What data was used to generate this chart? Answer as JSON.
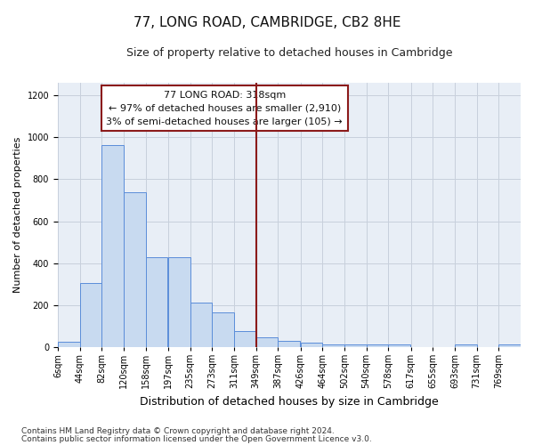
{
  "title": "77, LONG ROAD, CAMBRIDGE, CB2 8HE",
  "subtitle": "Size of property relative to detached houses in Cambridge",
  "xlabel": "Distribution of detached houses by size in Cambridge",
  "ylabel": "Number of detached properties",
  "footnote1": "Contains HM Land Registry data © Crown copyright and database right 2024.",
  "footnote2": "Contains public sector information licensed under the Open Government Licence v3.0.",
  "property_label": "77 LONG ROAD: 318sqm",
  "annotation_line1": "← 97% of detached houses are smaller (2,910)",
  "annotation_line2": "3% of semi-detached houses are larger (105) →",
  "property_size": 318,
  "bar_left_edges": [
    6,
    44,
    82,
    120,
    158,
    197,
    235,
    273,
    311,
    349,
    387,
    426,
    464,
    502,
    540,
    578,
    617,
    655,
    693,
    731,
    769
  ],
  "bar_widths": [
    38,
    38,
    38,
    38,
    38,
    38,
    38,
    38,
    38,
    38,
    38,
    38,
    38,
    38,
    38,
    38,
    38,
    38,
    38,
    38,
    38
  ],
  "bar_heights": [
    25,
    305,
    965,
    740,
    430,
    430,
    210,
    165,
    75,
    45,
    30,
    20,
    10,
    10,
    10,
    10,
    0,
    0,
    10,
    0,
    10
  ],
  "bar_color": "#c8daf0",
  "bar_edge_color": "#5b8dd9",
  "vline_x": 349,
  "vline_color": "#8b1a1a",
  "grid_color": "#c8d0dc",
  "background_color": "#e8eef6",
  "ylim": [
    0,
    1260
  ],
  "xlim": [
    6,
    807
  ],
  "yticks": [
    0,
    200,
    400,
    600,
    800,
    1000,
    1200
  ],
  "xtick_labels": [
    "6sqm",
    "44sqm",
    "82sqm",
    "120sqm",
    "158sqm",
    "197sqm",
    "235sqm",
    "273sqm",
    "311sqm",
    "349sqm",
    "387sqm",
    "426sqm",
    "464sqm",
    "502sqm",
    "540sqm",
    "578sqm",
    "617sqm",
    "655sqm",
    "693sqm",
    "731sqm",
    "769sqm"
  ],
  "xtick_positions": [
    6,
    44,
    82,
    120,
    158,
    197,
    235,
    273,
    311,
    349,
    387,
    426,
    464,
    502,
    540,
    578,
    617,
    655,
    693,
    731,
    769
  ],
  "annotation_box_color": "#8b1a1a",
  "title_fontsize": 11,
  "subtitle_fontsize": 9,
  "ylabel_fontsize": 8,
  "xlabel_fontsize": 9,
  "annotation_fontsize": 8,
  "tick_fontsize": 7,
  "footnote_fontsize": 6.5
}
